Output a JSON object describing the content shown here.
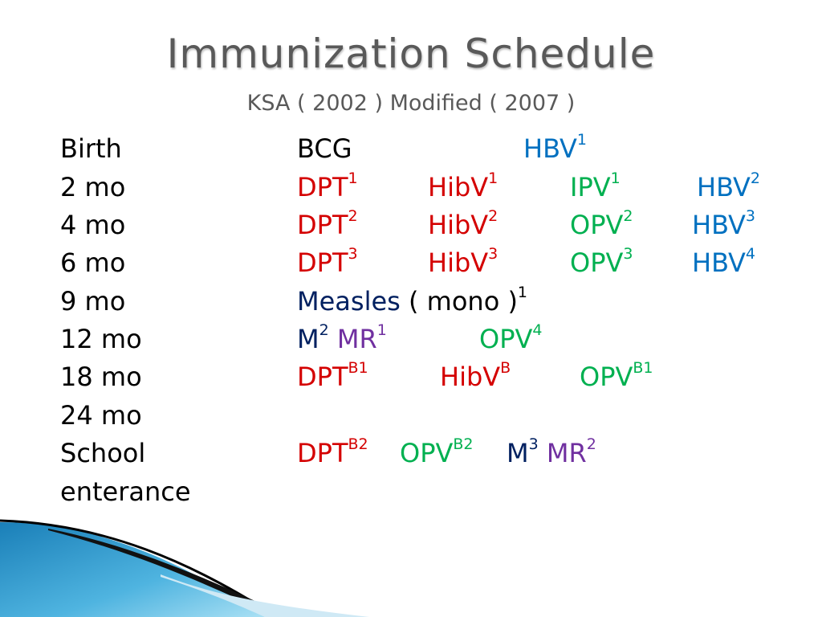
{
  "title": "Immunization Schedule",
  "subtitle": "KSA ( 2002 ) Modified ( 2007 )",
  "rows": [
    {
      "label": "Birth"
    },
    {
      "label": "2 mo"
    },
    {
      "label": "4 mo"
    },
    {
      "label": "6 mo"
    },
    {
      "label": "9 mo"
    },
    {
      "label": "12 mo"
    },
    {
      "label": "18 mo"
    },
    {
      "label": "24 mo"
    },
    {
      "label": "School"
    },
    {
      "label": "enterance"
    }
  ],
  "vaccines": {
    "birth": [
      {
        "name": "BCG",
        "sup": "",
        "color": "#000000"
      },
      {
        "name": "HBV",
        "sup": "1",
        "color": "#0070c0"
      }
    ],
    "mo2": [
      {
        "name": "DPT",
        "sup": "1",
        "color": "#d40000"
      },
      {
        "name": "HibV",
        "sup": "1",
        "color": "#d40000"
      },
      {
        "name": "IPV",
        "sup": "1",
        "color": "#00b050"
      },
      {
        "name": "HBV",
        "sup": "2",
        "color": "#0070c0"
      }
    ],
    "mo4": [
      {
        "name": "DPT",
        "sup": "2",
        "color": "#d40000"
      },
      {
        "name": "HibV",
        "sup": "2",
        "color": "#d40000"
      },
      {
        "name": "OPV",
        "sup": "2",
        "color": "#00b050"
      },
      {
        "name": "HBV",
        "sup": "3",
        "color": "#0070c0"
      }
    ],
    "mo6": [
      {
        "name": "DPT",
        "sup": "3",
        "color": "#d40000"
      },
      {
        "name": "HibV",
        "sup": "3",
        "color": "#d40000"
      },
      {
        "name": "OPV",
        "sup": "3",
        "color": "#00b050"
      },
      {
        "name": "HBV",
        "sup": "4",
        "color": "#0070c0"
      }
    ],
    "mo9": [
      {
        "name": "Measles",
        "sup": "",
        "color": "#002060"
      },
      {
        "name": "( mono )",
        "sup": "1",
        "color": "#000000"
      }
    ],
    "mo12": [
      {
        "name": "M",
        "sup": "2",
        "color": "#002060"
      },
      {
        "name": "MR",
        "sup": "1",
        "color": "#7030a0"
      },
      {
        "name": "OPV",
        "sup": "4",
        "color": "#00b050"
      }
    ],
    "mo18": [
      {
        "name": "DPT",
        "sup": "B1",
        "color": "#d40000"
      },
      {
        "name": "HibV",
        "sup": "B",
        "color": "#d40000"
      },
      {
        "name": "OPV",
        "sup": "B1",
        "color": "#00b050"
      }
    ],
    "school": [
      {
        "name": "DPT",
        "sup": "B2",
        "color": "#d40000"
      },
      {
        "name": "OPV",
        "sup": "B2",
        "color": "#00b050"
      },
      {
        "name": "M",
        "sup": "3",
        "color": "#002060"
      },
      {
        "name": "MR",
        "sup": "2",
        "color": "#7030a0"
      }
    ]
  },
  "colors": {
    "title": "#595959",
    "red": "#d40000",
    "green": "#00b050",
    "blue": "#0070c0",
    "navy": "#002060",
    "purple": "#7030a0",
    "wave_light": "#8fd3ee",
    "wave_dark": "#1a7fb8"
  }
}
